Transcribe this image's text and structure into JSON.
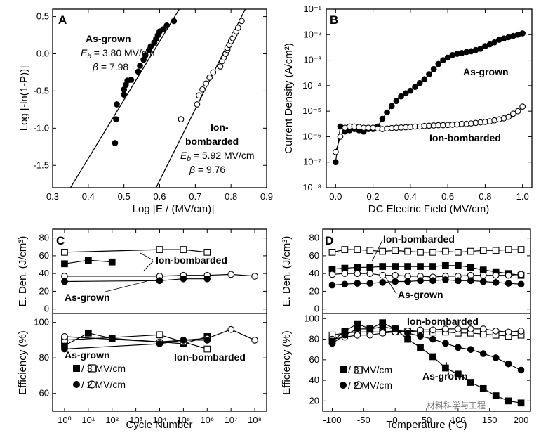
{
  "watermark": "材料科学与工程",
  "chart_data": [
    {
      "panel": "A",
      "type": "scatter",
      "xlabel": "Log [E / (MV/cm)]",
      "ylabel": "Log [-ln(1-P))]",
      "xlim": [
        0.3,
        0.9
      ],
      "ylim": [
        -1.8,
        0.6
      ],
      "xticks": [
        "0.3",
        "0.4",
        "0.5",
        "0.6",
        "0.7",
        "0.8",
        "0.9"
      ],
      "yticks": [
        "0.5",
        "0.0",
        "-0.5",
        "-1.0",
        "-1.5"
      ],
      "series": [
        {
          "name": "As-grown",
          "filled": true,
          "x": [
            0.475,
            0.478,
            0.48,
            0.5,
            0.5,
            0.505,
            0.51,
            0.52,
            0.54,
            0.545,
            0.555,
            0.56,
            0.57,
            0.575,
            0.585,
            0.59,
            0.595,
            0.6,
            0.61,
            0.62,
            0.64
          ],
          "y": [
            -1.2,
            -0.88,
            -0.68,
            -0.55,
            -0.48,
            -0.42,
            -0.36,
            -0.35,
            -0.24,
            -0.16,
            -0.08,
            -0.02,
            0.05,
            0.1,
            0.15,
            0.2,
            0.25,
            0.3,
            0.33,
            0.38,
            0.44
          ],
          "fit": [
            [
              0.35,
              -1.8
            ],
            [
              0.655,
              0.6
            ]
          ]
        },
        {
          "name": "Ion-bombarded",
          "filled": false,
          "x": [
            0.66,
            0.705,
            0.71,
            0.72,
            0.73,
            0.74,
            0.75,
            0.77,
            0.775,
            0.78,
            0.785,
            0.79,
            0.79,
            0.795,
            0.8,
            0.805,
            0.81,
            0.815,
            0.82,
            0.83
          ],
          "y": [
            -0.88,
            -0.68,
            -0.56,
            -0.48,
            -0.4,
            -0.32,
            -0.25,
            -0.17,
            -0.1,
            -0.05,
            0.0,
            0.05,
            0.08,
            0.12,
            0.17,
            0.21,
            0.26,
            0.3,
            0.35,
            0.44
          ],
          "fit": [
            [
              0.59,
              -1.8
            ],
            [
              0.84,
              0.6
            ]
          ]
        }
      ],
      "annotations": {
        "ag_name": "As-grown",
        "ag_eb": "3.80 MV/cm",
        "ag_beta": "7.98",
        "ion_name1": "Ion-",
        "ion_name2": "bombarded",
        "ion_eb": "5.92 MV/cm",
        "ion_beta": "9.76"
      }
    },
    {
      "panel": "B",
      "type": "line",
      "xlabel": "DC Electric Field (MV/cm)",
      "ylabel": "Current Density (A/cm²)",
      "xlim": [
        -0.05,
        1.05
      ],
      "ylim_log10": [
        -8,
        -1
      ],
      "xticks": [
        "0.0",
        "0.2",
        "0.4",
        "0.6",
        "0.8",
        "1.0"
      ],
      "yticks": [
        "10⁻¹",
        "10⁻²",
        "10⁻³",
        "10⁻⁴",
        "10⁻⁵",
        "10⁻⁶",
        "10⁻⁷",
        "10⁻⁸"
      ],
      "series": [
        {
          "name": "As-grown",
          "filled": true,
          "x": [
            0.0,
            0.025,
            0.05,
            0.075,
            0.1,
            0.125,
            0.15,
            0.175,
            0.2,
            0.225,
            0.25,
            0.275,
            0.3,
            0.325,
            0.35,
            0.375,
            0.4,
            0.425,
            0.45,
            0.475,
            0.5,
            0.525,
            0.55,
            0.575,
            0.6,
            0.625,
            0.65,
            0.675,
            0.7,
            0.725,
            0.75,
            0.775,
            0.8,
            0.825,
            0.85,
            0.875,
            0.9,
            0.925,
            0.95,
            0.975,
            1.0
          ],
          "log10y": [
            -7.0,
            -5.6,
            -5.8,
            -5.75,
            -5.7,
            -5.75,
            -5.8,
            -5.7,
            -5.7,
            -5.6,
            -5.3,
            -5.05,
            -4.8,
            -4.6,
            -4.42,
            -4.3,
            -4.2,
            -4.05,
            -3.9,
            -3.75,
            -3.55,
            -3.35,
            -3.15,
            -3.0,
            -2.9,
            -2.8,
            -2.75,
            -2.72,
            -2.68,
            -2.65,
            -2.6,
            -2.55,
            -2.45,
            -2.38,
            -2.3,
            -2.2,
            -2.15,
            -2.1,
            -2.05,
            -2.0,
            -1.95
          ]
        },
        {
          "name": "Ion-bombarded",
          "filled": false,
          "x": [
            0.0,
            0.025,
            0.05,
            0.075,
            0.1,
            0.125,
            0.15,
            0.175,
            0.2,
            0.225,
            0.25,
            0.275,
            0.3,
            0.325,
            0.35,
            0.375,
            0.4,
            0.425,
            0.45,
            0.475,
            0.5,
            0.525,
            0.55,
            0.575,
            0.6,
            0.625,
            0.65,
            0.675,
            0.7,
            0.725,
            0.75,
            0.775,
            0.8,
            0.825,
            0.85,
            0.875,
            0.9,
            0.925,
            0.95,
            0.975,
            1.0
          ],
          "log10y": [
            -6.6,
            -6.0,
            -5.65,
            -5.6,
            -5.6,
            -5.62,
            -5.65,
            -5.65,
            -5.65,
            -5.68,
            -5.7,
            -5.68,
            -5.66,
            -5.65,
            -5.64,
            -5.63,
            -5.62,
            -5.6,
            -5.6,
            -5.58,
            -5.57,
            -5.56,
            -5.55,
            -5.55,
            -5.54,
            -5.53,
            -5.52,
            -5.5,
            -5.5,
            -5.48,
            -5.46,
            -5.44,
            -5.42,
            -5.4,
            -5.36,
            -5.32,
            -5.28,
            -5.22,
            -5.1,
            -5.0,
            -4.82
          ]
        }
      ],
      "annotations": {
        "ag": "As-grown",
        "ion": "Ion-bombarded"
      }
    },
    {
      "panel": "C",
      "type": "line",
      "xlabel": "Cycle Number",
      "x_log10_lim": [
        -0.5,
        8.5
      ],
      "xticks": [
        "10⁰",
        "10¹",
        "10²",
        "10³",
        "10⁴",
        "10⁵",
        "10⁶",
        "10⁷",
        "10⁸"
      ],
      "top": {
        "ylabel": "E. Den. (J/cm³)",
        "ylim": [
          -5,
          90
        ],
        "yticks": [
          "80",
          "60",
          "40",
          "20",
          "0"
        ],
        "series": [
          {
            "name": "Ion-bombarded 3 MV/cm",
            "filled": false,
            "marker": "square",
            "x": [
              0,
              4,
              5,
              6
            ],
            "y": [
              64,
              67,
              67,
              64
            ]
          },
          {
            "name": "As-grown 3 MV/cm",
            "filled": true,
            "marker": "square",
            "x": [
              0,
              1,
              2
            ],
            "y": [
              51,
              55,
              53
            ]
          },
          {
            "name": "Ion-bombarded 2 MV/cm",
            "filled": false,
            "marker": "circle",
            "x": [
              0,
              4,
              5,
              6,
              7,
              8
            ],
            "y": [
              37,
              37,
              38,
              38,
              39,
              37
            ]
          },
          {
            "name": "As-grown 2 MV/cm",
            "filled": true,
            "marker": "circle",
            "x": [
              0,
              4,
              5,
              6
            ],
            "y": [
              31,
              32,
              34,
              34
            ]
          }
        ],
        "labels": {
          "ion": "Ion-bombarded",
          "ag": "As-grown"
        }
      },
      "bottom": {
        "ylabel": "Efficiency (%)",
        "ylim": [
          50,
          105
        ],
        "yticks": [
          "100",
          "80",
          "60"
        ],
        "series": [
          {
            "name": "As-grown 3 MV/cm",
            "filled": true,
            "marker": "square",
            "x": [
              0,
              1,
              2,
              5,
              6
            ],
            "y": [
              87,
              94,
              91,
              88,
              92
            ]
          },
          {
            "name": "Ion-bombarded 3 MV/cm",
            "filled": false,
            "marker": "square",
            "x": [
              0,
              4,
              5,
              6
            ],
            "y": [
              90,
              93,
              89,
              85
            ]
          },
          {
            "name": "Ion-bombarded 2 MV/cm",
            "filled": false,
            "marker": "circle",
            "x": [
              0,
              4,
              5,
              6,
              7,
              8
            ],
            "y": [
              92,
              89,
              90,
              91,
              96,
              90
            ]
          },
          {
            "name": "As-grown 2 MV/cm",
            "filled": true,
            "marker": "circle",
            "x": [
              0,
              4,
              5,
              6
            ],
            "y": [
              85,
              88,
              90,
              90
            ]
          }
        ],
        "labels": {
          "ag": "As-grown",
          "ion": "Ion-bombarded",
          "leg3": "/    3 MV/cm",
          "leg2": "/    2 MV/cm"
        }
      }
    },
    {
      "panel": "D",
      "type": "line",
      "xlabel": "Temperature (°C)",
      "xlim": [
        -115,
        215
      ],
      "xticks": [
        "-100",
        "-50",
        "0",
        "50",
        "100",
        "150",
        "200"
      ],
      "top": {
        "ylabel": "E. Den. (J/cm³)",
        "ylim": [
          -5,
          90
        ],
        "yticks": [
          "80",
          "60",
          "40",
          "20",
          "0"
        ],
        "series": [
          {
            "name": "Ion-bombarded 3 MV/cm",
            "filled": false,
            "marker": "square",
            "x": [
              -100,
              -80,
              -60,
              -40,
              -20,
              0,
              20,
              40,
              60,
              80,
              100,
              120,
              140,
              160,
              180,
              200
            ],
            "y": [
              64,
              67,
              67,
              66,
              65,
              66,
              65,
              64,
              64,
              65,
              64,
              65,
              66,
              66,
              67,
              67
            ]
          },
          {
            "name": "As-grown 3 MV/cm",
            "filled": true,
            "marker": "square",
            "x": [
              -100,
              -80,
              -60,
              -40,
              -20,
              0,
              20,
              40,
              60,
              80,
              100,
              120,
              140,
              160,
              180,
              200
            ],
            "y": [
              45,
              46,
              47,
              47,
              48,
              48,
              48,
              48,
              48,
              49,
              49,
              47,
              44,
              42,
              40,
              38
            ]
          },
          {
            "name": "Ion-bombarded 2 MV/cm",
            "filled": false,
            "marker": "circle",
            "x": [
              -100,
              -80,
              -60,
              -40,
              -20,
              0,
              20,
              40,
              60,
              80,
              100,
              120,
              140,
              160,
              180,
              200
            ],
            "y": [
              39,
              40,
              40,
              40,
              38,
              38,
              37,
              37,
              36,
              37,
              37,
              38,
              38,
              38,
              38,
              39
            ]
          },
          {
            "name": "As-grown 2 MV/cm",
            "filled": true,
            "marker": "circle",
            "x": [
              -100,
              -80,
              -60,
              -40,
              -20,
              0,
              20,
              40,
              60,
              80,
              100,
              120,
              140,
              160,
              180,
              200
            ],
            "y": [
              27,
              28,
              29,
              29,
              30,
              31,
              31,
              32,
              32,
              33,
              32,
              32,
              31,
              30,
              29,
              28
            ]
          }
        ],
        "labels": {
          "ion": "Ion-bombarded",
          "ag": "As-grown"
        }
      },
      "bottom": {
        "ylabel": "Efficiency (%)",
        "ylim": [
          10,
          105
        ],
        "yticks": [
          "100",
          "80",
          "60",
          "40",
          "20"
        ],
        "series": [
          {
            "name": "Ion-bombarded 3 MV/cm",
            "filled": false,
            "marker": "square",
            "x": [
              -100,
              -80,
              -60,
              -40,
              -20,
              0,
              20,
              40,
              60,
              80,
              100,
              120,
              140,
              160,
              180,
              200
            ],
            "y": [
              84,
              86,
              87,
              87,
              87,
              88,
              88,
              87,
              87,
              87,
              86,
              86,
              85,
              84,
              83,
              84
            ]
          },
          {
            "name": "Ion-bombarded 2 MV/cm",
            "filled": false,
            "marker": "circle",
            "x": [
              -100,
              -80,
              -60,
              -40,
              -20,
              0,
              20,
              40,
              60,
              80,
              100,
              120,
              140,
              160,
              180,
              200
            ],
            "y": [
              80,
              82,
              84,
              84,
              86,
              87,
              88,
              89,
              89,
              90,
              90,
              90,
              90,
              88,
              87,
              88
            ]
          },
          {
            "name": "As-grown 3 MV/cm",
            "filled": true,
            "marker": "square",
            "x": [
              -100,
              -80,
              -60,
              -40,
              -20,
              0,
              20,
              40,
              60,
              80,
              100,
              120,
              140,
              160,
              180,
              200
            ],
            "y": [
              78,
              88,
              95,
              90,
              96,
              90,
              80,
              72,
              63,
              52,
              46,
              38,
              32,
              25,
              20,
              18
            ]
          },
          {
            "name": "As-grown 2 MV/cm",
            "filled": true,
            "marker": "circle",
            "x": [
              -100,
              -80,
              -60,
              -40,
              -20,
              0,
              20,
              40,
              60,
              80,
              100,
              120,
              140,
              160,
              180,
              200
            ],
            "y": [
              76,
              84,
              90,
              90,
              92,
              90,
              86,
              83,
              80,
              76,
              72,
              70,
              66,
              62,
              56,
              50
            ]
          }
        ],
        "labels": {
          "ion": "Ion-bombarded",
          "ag": "As-grown",
          "leg3": "/    3 MV/cm",
          "leg2": "/    2 MV/cm"
        }
      }
    }
  ]
}
